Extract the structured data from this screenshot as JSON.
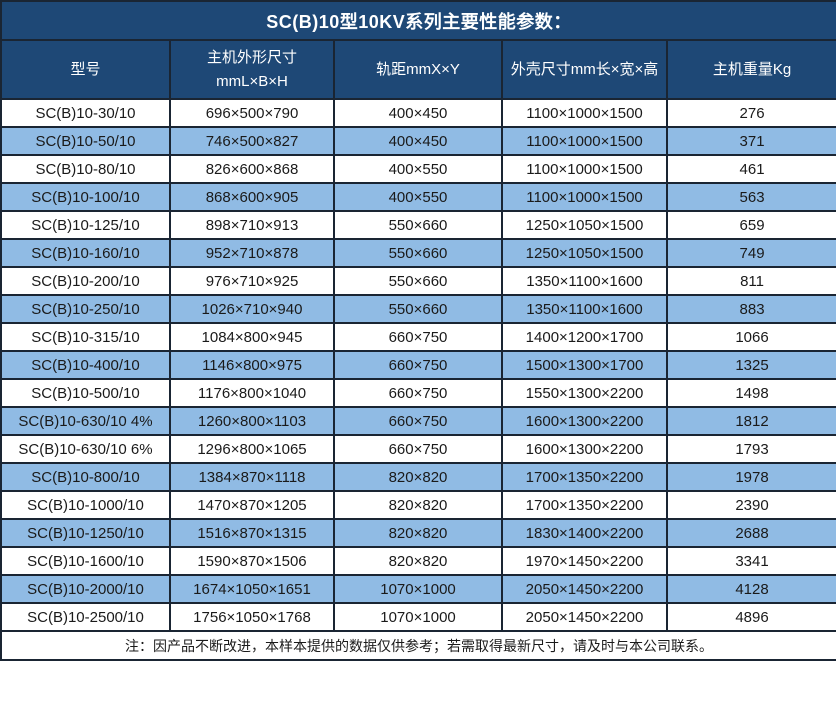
{
  "title": "SC(B)10型10KV系列主要性能参数：",
  "note": "注：因产品不断改进，本样本提供的数据仅供参考；若需取得最新尺寸，请及时与本公司联系。",
  "colors": {
    "header_bg": "#1E4876",
    "alt_row_bg": "#90BBE4",
    "row_bg": "#FFFFFF",
    "border": "#1A2533",
    "header_text": "#FFFFFF",
    "body_text": "#1A1A1A"
  },
  "table": {
    "headers": [
      "型号",
      "主机外形尺寸\nmmL×B×H",
      "轨距mmX×Y",
      "外壳尺寸mm长×宽×高",
      "主机重量Kg"
    ],
    "rows": [
      [
        "SC(B)10-30/10",
        "696×500×790",
        "400×450",
        "1100×1000×1500",
        "276"
      ],
      [
        "SC(B)10-50/10",
        "746×500×827",
        "400×450",
        "1100×1000×1500",
        "371"
      ],
      [
        "SC(B)10-80/10",
        "826×600×868",
        "400×550",
        "1100×1000×1500",
        "461"
      ],
      [
        "SC(B)10-100/10",
        "868×600×905",
        "400×550",
        "1100×1000×1500",
        "563"
      ],
      [
        "SC(B)10-125/10",
        "898×710×913",
        "550×660",
        "1250×1050×1500",
        "659"
      ],
      [
        "SC(B)10-160/10",
        "952×710×878",
        "550×660",
        "1250×1050×1500",
        "749"
      ],
      [
        "SC(B)10-200/10",
        "976×710×925",
        "550×660",
        "1350×1100×1600",
        "811"
      ],
      [
        "SC(B)10-250/10",
        "1026×710×940",
        "550×660",
        "1350×1100×1600",
        "883"
      ],
      [
        "SC(B)10-315/10",
        "1084×800×945",
        "660×750",
        "1400×1200×1700",
        "1066"
      ],
      [
        "SC(B)10-400/10",
        "1146×800×975",
        "660×750",
        "1500×1300×1700",
        "1325"
      ],
      [
        "SC(B)10-500/10",
        "1176×800×1040",
        "660×750",
        "1550×1300×2200",
        "1498"
      ],
      [
        "SC(B)10-630/10 4%",
        "1260×800×1103",
        "660×750",
        "1600×1300×2200",
        "1812"
      ],
      [
        "SC(B)10-630/10 6%",
        "1296×800×1065",
        "660×750",
        "1600×1300×2200",
        "1793"
      ],
      [
        "SC(B)10-800/10",
        "1384×870×1118",
        "820×820",
        "1700×1350×2200",
        "1978"
      ],
      [
        "SC(B)10-1000/10",
        "1470×870×1205",
        "820×820",
        "1700×1350×2200",
        "2390"
      ],
      [
        "SC(B)10-1250/10",
        "1516×870×1315",
        "820×820",
        "1830×1400×2200",
        "2688"
      ],
      [
        "SC(B)10-1600/10",
        "1590×870×1506",
        "820×820",
        "1970×1450×2200",
        "3341"
      ],
      [
        "SC(B)10-2000/10",
        "1674×1050×1651",
        "1070×1000",
        "2050×1450×2200",
        "4128"
      ],
      [
        "SC(B)10-2500/10",
        "1756×1050×1768",
        "1070×1000",
        "2050×1450×2200",
        "4896"
      ]
    ]
  }
}
